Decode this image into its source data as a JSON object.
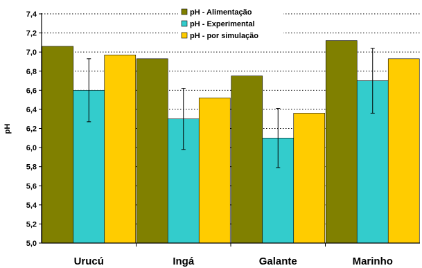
{
  "chart_data": {
    "type": "bar",
    "title": "",
    "xlabel": "",
    "ylabel": "pH",
    "ylim": [
      5.0,
      7.4
    ],
    "ytick_step": 0.2,
    "yticks": [
      "5,0",
      "5,2",
      "5,4",
      "5,6",
      "5,8",
      "6,0",
      "6,2",
      "6,4",
      "6,6",
      "6,8",
      "7,0",
      "7,2",
      "7,4"
    ],
    "grid": "horizontal dotted",
    "legend_position": "top-center",
    "categories": [
      "Urucú",
      "Ingá",
      "Galante",
      "Marinho"
    ],
    "series": [
      {
        "name": "pH - Alimentação",
        "color": "#808000",
        "values": [
          7.06,
          6.93,
          6.75,
          7.12
        ]
      },
      {
        "name": "pH - Experimental",
        "color": "#33CCCC",
        "values": [
          6.6,
          6.3,
          6.1,
          6.7
        ],
        "error": [
          0.33,
          0.32,
          0.31,
          0.34
        ]
      },
      {
        "name": "pH - por simulação",
        "color": "#FFCC00",
        "values": [
          6.97,
          6.52,
          6.36,
          6.93
        ]
      }
    ]
  }
}
